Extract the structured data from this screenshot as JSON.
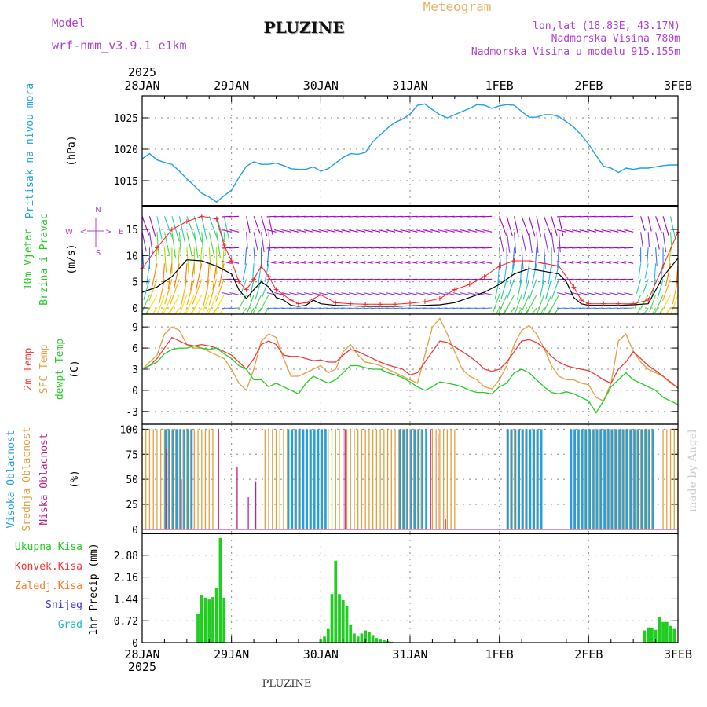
{
  "header": {
    "model_label": "Model",
    "model_name": "wrf-nmm_v3.9.1  e1km",
    "station": "PLUZINE",
    "product": "Meteogram",
    "lonlat": "lon,lat (18.83E, 43.17N)",
    "elevation": "Nadmorska Visina 780m",
    "model_elevation": "Nadmorska Visina u modelu 915.155m",
    "footer_station": "PLUZINE",
    "credit": "made by Angel"
  },
  "colors": {
    "pressure": "#1ea0e6",
    "wind_speed": "#000000",
    "wind_gust": "#ff2020",
    "temp2m": "#f03c3c",
    "sfc_temp": "#e0a040",
    "dewpoint": "#22cc22",
    "cloud_high": "#1ea0e6",
    "cloud_mid": "#e0a040",
    "cloud_low": "#c0208a",
    "precip_total": "#22cc22",
    "precip_conv": "#ff3333",
    "precip_frz": "#ff7722",
    "snow": "#3333dd",
    "graupel": "#22bbbb",
    "title_purple": "#b040d0",
    "meteogram_orange": "#e8b060"
  },
  "time_axis": {
    "year": "2025",
    "labels": [
      "28JAN",
      "29JAN",
      "30JAN",
      "31JAN",
      "1FEB",
      "2FEB",
      "3FEB"
    ],
    "hours": 144
  },
  "chart_data": [
    {
      "type": "line",
      "panel": "pressure",
      "ylabel_main": "Pritisak na nivou mora",
      "ylabel_unit": "(hPa)",
      "y_ticks": [
        "1015",
        "1020",
        "1025"
      ],
      "ylim": [
        1011,
        1028.5
      ],
      "grid": true,
      "x_hours": [
        0,
        2,
        4,
        6,
        8,
        10,
        12,
        14,
        16,
        18,
        20,
        22,
        24,
        26,
        28,
        30,
        32,
        34,
        36,
        38,
        40,
        42,
        44,
        46,
        48,
        50,
        52,
        54,
        56,
        58,
        60,
        62,
        64,
        66,
        68,
        70,
        72,
        74,
        76,
        78,
        80,
        82,
        84,
        86,
        88,
        90,
        92,
        94,
        96,
        98,
        100,
        102,
        104,
        106,
        108,
        110,
        112,
        114,
        116,
        118,
        120,
        122,
        124,
        126,
        128,
        130,
        132,
        134,
        136,
        138,
        140,
        142,
        144
      ],
      "values": [
        1018.5,
        1019.3,
        1018.3,
        1017.9,
        1017.6,
        1016.5,
        1015.3,
        1014.2,
        1013.0,
        1012.4,
        1011.6,
        1012.6,
        1013.5,
        1015.5,
        1017.3,
        1018.0,
        1017.6,
        1017.6,
        1017.8,
        1017.4,
        1016.9,
        1016.8,
        1016.8,
        1017.2,
        1016.5,
        1016.9,
        1017.8,
        1018.7,
        1019.3,
        1019.2,
        1019.5,
        1021.2,
        1022.3,
        1023.4,
        1024.3,
        1024.8,
        1025.6,
        1027.0,
        1027.2,
        1026.3,
        1025.5,
        1025.0,
        1025.5,
        1026.0,
        1026.5,
        1027.1,
        1027.0,
        1026.5,
        1026.9,
        1027.1,
        1027.0,
        1026.0,
        1025.1,
        1025.1,
        1025.5,
        1025.5,
        1025.2,
        1024.4,
        1023.5,
        1022.3,
        1020.8,
        1019.0,
        1017.3,
        1017.0,
        1016.3,
        1017.0,
        1016.8,
        1017.0,
        1017.0,
        1017.2,
        1017.4,
        1017.5,
        1017.5
      ]
    },
    {
      "type": "line",
      "panel": "wind",
      "ylabel_main": "10m Vjetar",
      "ylabel_sub": "Brzina i Pravac",
      "ylabel_unit": "(m/s)",
      "compass": {
        "n": "N",
        "s": "S",
        "e": "E",
        "w": "W",
        "left": "<",
        "right": ">"
      },
      "y_ticks": [
        "0",
        "5",
        "10",
        "15"
      ],
      "ylim": [
        -1.2,
        19.5
      ],
      "grid": true,
      "speed_hours": [
        0,
        4,
        8,
        12,
        16,
        20,
        24,
        26,
        28,
        30,
        32,
        34,
        36,
        38,
        40,
        42,
        44,
        46,
        48,
        52,
        56,
        60,
        64,
        68,
        72,
        76,
        80,
        84,
        88,
        92,
        96,
        100,
        104,
        108,
        112,
        114,
        116,
        118,
        120,
        122,
        124,
        128,
        132,
        136,
        140,
        144
      ],
      "speed": [
        3.0,
        4.0,
        6.0,
        9.2,
        9.0,
        8.0,
        6.5,
        3.5,
        1.8,
        3.5,
        5.0,
        4.0,
        2.0,
        1.5,
        0.5,
        0.3,
        0.5,
        1.5,
        0.8,
        0.5,
        0.4,
        0.3,
        0.3,
        0.3,
        0.4,
        0.5,
        0.6,
        1.0,
        2.0,
        3.0,
        4.5,
        6.5,
        7.5,
        7.0,
        6.5,
        5.0,
        2.0,
        0.8,
        0.5,
        0.5,
        0.5,
        0.5,
        0.6,
        0.8,
        6.0,
        9.5
      ],
      "gust_hours": [
        0,
        4,
        8,
        12,
        16,
        20,
        22,
        24,
        26,
        28,
        30,
        32,
        34,
        36,
        38,
        40,
        42,
        44,
        48,
        52,
        56,
        60,
        64,
        68,
        72,
        76,
        80,
        84,
        88,
        92,
        96,
        100,
        104,
        108,
        112,
        116,
        118,
        120,
        124,
        128,
        132,
        136,
        140,
        144
      ],
      "gust": [
        7.5,
        11.5,
        15.0,
        16.5,
        17.5,
        17.0,
        12.0,
        9.0,
        5.0,
        3.5,
        5.5,
        8.0,
        6.0,
        3.5,
        2.5,
        1.5,
        0.8,
        1.0,
        2.5,
        1.0,
        0.8,
        0.7,
        0.7,
        0.7,
        0.9,
        1.2,
        1.8,
        3.5,
        4.5,
        6.0,
        8.0,
        9.0,
        9.0,
        8.5,
        8.0,
        4.0,
        1.5,
        0.8,
        0.8,
        0.8,
        0.8,
        1.5,
        8.0,
        14.5
      ]
    },
    {
      "type": "line",
      "panel": "temperature",
      "ylabel_a": "2m Temp",
      "ylabel_b": "SFC Temp",
      "ylabel_c": "dewpt Temp",
      "ylabel_unit": "(C)",
      "y_ticks": [
        "-3",
        "0",
        "3",
        "6",
        "9"
      ],
      "ylim": [
        -4.8,
        10.8
      ],
      "grid": true,
      "x_hours": [
        0,
        2,
        4,
        6,
        8,
        10,
        12,
        14,
        16,
        18,
        20,
        22,
        24,
        26,
        28,
        30,
        32,
        34,
        36,
        38,
        40,
        42,
        44,
        46,
        48,
        50,
        52,
        54,
        56,
        58,
        60,
        62,
        64,
        66,
        68,
        70,
        72,
        74,
        76,
        78,
        80,
        82,
        84,
        86,
        88,
        90,
        92,
        94,
        96,
        98,
        100,
        102,
        104,
        106,
        108,
        110,
        112,
        114,
        116,
        118,
        120,
        122,
        124,
        126,
        128,
        130,
        132,
        134,
        136,
        138,
        140,
        142,
        144
      ],
      "t2m": [
        3.0,
        3.5,
        4.5,
        6.0,
        7.5,
        7.0,
        6.5,
        6.3,
        6.5,
        6.3,
        6.0,
        5.5,
        5.0,
        4.0,
        3.0,
        4.5,
        6.5,
        7.0,
        6.5,
        5.0,
        4.8,
        4.8,
        4.5,
        4.2,
        4.3,
        4.0,
        4.0,
        5.0,
        5.8,
        5.5,
        5.0,
        4.5,
        4.0,
        3.6,
        3.3,
        3.0,
        2.2,
        2.5,
        4.0,
        5.5,
        7.0,
        6.8,
        6.2,
        5.5,
        4.8,
        4.0,
        3.0,
        2.7,
        3.0,
        4.0,
        5.5,
        7.0,
        7.2,
        6.8,
        6.0,
        4.8,
        4.0,
        3.5,
        3.2,
        3.0,
        2.8,
        2.2,
        1.5,
        1.0,
        3.0,
        4.0,
        5.5,
        4.5,
        3.5,
        2.8,
        2.0,
        1.2,
        0.3
      ],
      "sfc": [
        3.0,
        4.0,
        5.0,
        8.0,
        9.0,
        8.5,
        6.5,
        6.0,
        6.0,
        5.5,
        5.0,
        4.5,
        3.0,
        1.0,
        0.0,
        3.0,
        7.0,
        8.0,
        7.5,
        4.5,
        2.0,
        2.0,
        2.5,
        3.0,
        3.5,
        2.5,
        3.0,
        5.5,
        6.5,
        5.0,
        4.0,
        3.8,
        3.5,
        3.0,
        2.5,
        2.0,
        1.5,
        1.0,
        5.0,
        9.0,
        10.2,
        8.0,
        5.5,
        3.0,
        2.0,
        1.5,
        0.5,
        0.2,
        1.5,
        3.5,
        6.5,
        8.5,
        9.2,
        8.0,
        6.0,
        3.5,
        2.0,
        1.5,
        1.5,
        1.0,
        0.8,
        -1.0,
        -1.5,
        1.0,
        7.0,
        8.0,
        5.5,
        4.0,
        3.0,
        2.5,
        2.0,
        1.0,
        0.5
      ],
      "dewpt": [
        3.0,
        3.5,
        4.0,
        5.2,
        5.8,
        6.0,
        6.0,
        6.3,
        6.0,
        5.8,
        6.0,
        5.2,
        4.5,
        3.5,
        3.0,
        1.5,
        1.5,
        0.5,
        1.0,
        0.5,
        0.0,
        -0.5,
        1.0,
        2.0,
        1.5,
        1.0,
        1.5,
        2.5,
        3.5,
        3.5,
        3.2,
        3.0,
        3.0,
        2.5,
        2.2,
        1.8,
        1.2,
        0.5,
        0.0,
        0.5,
        1.2,
        1.0,
        0.8,
        0.5,
        0.0,
        -0.3,
        -0.3,
        -0.5,
        0.5,
        1.0,
        2.5,
        3.0,
        2.5,
        1.5,
        0.5,
        -0.3,
        -0.5,
        -0.2,
        -0.5,
        -1.0,
        -1.5,
        -3.2,
        -1.5,
        0.5,
        1.5,
        2.5,
        1.5,
        1.0,
        0.5,
        0.0,
        -1.0,
        -1.5,
        -2.0
      ]
    },
    {
      "type": "bar",
      "panel": "clouds",
      "ylabel_a": "Visoka Oblacnost",
      "ylabel_b": "Srednja Oblacnost",
      "ylabel_c": "Niska  Oblacnost",
      "ylabel_unit": "(%)",
      "y_ticks": [
        "0",
        "25",
        "50",
        "75",
        "100"
      ],
      "ylim": [
        -4,
        105
      ],
      "grid": true,
      "high_ranges": [
        [
          6,
          13
        ],
        [
          39,
          49
        ],
        [
          69,
          76
        ],
        [
          98,
          107
        ],
        [
          115,
          137
        ]
      ],
      "mid_ranges": [
        [
          0,
          19
        ],
        [
          33,
          75
        ],
        [
          78,
          84
        ],
        [
          98,
          107
        ],
        [
          115,
          137
        ],
        [
          140,
          144
        ]
      ],
      "low_spikes": [
        [
          6,
          80
        ],
        [
          10,
          50
        ],
        [
          20,
          100
        ],
        [
          25,
          62
        ],
        [
          28,
          32
        ],
        [
          30,
          48
        ],
        [
          54,
          100
        ],
        [
          77,
          100
        ],
        [
          79,
          96
        ],
        [
          81,
          10
        ]
      ]
    },
    {
      "type": "bar",
      "panel": "precip",
      "legend": [
        "Ukupna  Kisa",
        "Konvek.Kisa",
        "Zaledj.Kisa",
        "Snijeg",
        "Grad"
      ],
      "ylabel_a": "1hr Precip",
      "ylabel_unit": "(mm)",
      "y_ticks": [
        "0",
        "0.72",
        "1.44",
        "2.16",
        "2.88"
      ],
      "ylim": [
        0,
        3.6
      ],
      "grid": true,
      "bar_hours": [
        15,
        16,
        17,
        18,
        19,
        20,
        21,
        22,
        48,
        49,
        50,
        51,
        52,
        53,
        54,
        55,
        56,
        57,
        58,
        59,
        60,
        61,
        62,
        63,
        64,
        65,
        66,
        67,
        135,
        136,
        137,
        138,
        139,
        140,
        141,
        142,
        143
      ],
      "values": [
        0.95,
        1.58,
        1.48,
        1.42,
        1.5,
        1.8,
        3.45,
        1.48,
        0.1,
        0.2,
        0.45,
        1.6,
        2.7,
        1.6,
        1.4,
        1.2,
        0.6,
        0.3,
        0.2,
        0.3,
        0.4,
        0.35,
        0.25,
        0.15,
        0.1,
        0.08,
        0.05,
        0.03,
        0.4,
        0.5,
        0.48,
        0.42,
        0.85,
        0.68,
        0.68,
        0.55,
        0.45
      ]
    }
  ]
}
